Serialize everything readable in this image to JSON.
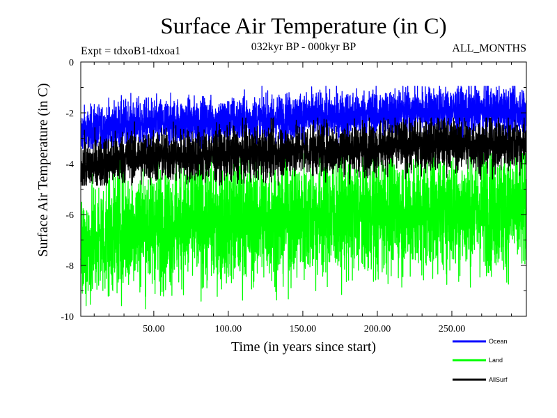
{
  "chart_data": {
    "type": "line",
    "title": "Surface Air Temperature (in C)",
    "subtitle": "032kyr BP - 000kyr BP",
    "experiment_label": "Expt = tdxoB1-tdxoa1",
    "months_label": "ALL_MONTHS",
    "xlabel": "Time (in years since start)",
    "ylabel": "Surface Air Temperature (in C)",
    "xlim": [
      1,
      300
    ],
    "ylim": [
      -10,
      0
    ],
    "x_ticks": [
      50,
      100,
      150,
      200,
      250
    ],
    "x_tick_labels": [
      "50.00",
      "100.00",
      "150.00",
      "200.00",
      "250.00"
    ],
    "y_ticks": [
      0,
      -2,
      -4,
      -6,
      -8,
      -10
    ],
    "y_tick_labels": [
      "0",
      "-2",
      "-4",
      "-6",
      "-8",
      "-10"
    ],
    "grid": false,
    "legend_position": "bottom-right",
    "series": [
      {
        "name": "Ocean",
        "color": "#0000ff",
        "trend_x": [
          1,
          30,
          60,
          90,
          120,
          150,
          180,
          210,
          240,
          270,
          300
        ],
        "trend_mean": [
          -2.8,
          -2.45,
          -2.4,
          -2.35,
          -2.3,
          -2.15,
          -2.1,
          -2.0,
          -1.9,
          -1.95,
          -1.9
        ],
        "range_high": -0.95,
        "range_low": -3.4
      },
      {
        "name": "Land",
        "color": "#00ff00",
        "trend_x": [
          1,
          30,
          60,
          90,
          120,
          150,
          180,
          210,
          240,
          270,
          300
        ],
        "trend_mean": [
          -7.4,
          -6.5,
          -6.4,
          -6.3,
          -6.25,
          -6.1,
          -6.05,
          -5.9,
          -5.8,
          -5.85,
          -5.8
        ],
        "range_high": -3.6,
        "range_low": -9.75
      },
      {
        "name": "AllSurf",
        "color": "#000000",
        "trend_x": [
          1,
          30,
          60,
          90,
          120,
          150,
          180,
          210,
          240,
          270,
          300
        ],
        "trend_mean": [
          -4.15,
          -3.75,
          -3.7,
          -3.65,
          -3.6,
          -3.45,
          -3.4,
          -3.3,
          -3.2,
          -3.25,
          -3.2
        ],
        "range_high": -2.2,
        "range_low": -4.85
      }
    ]
  }
}
